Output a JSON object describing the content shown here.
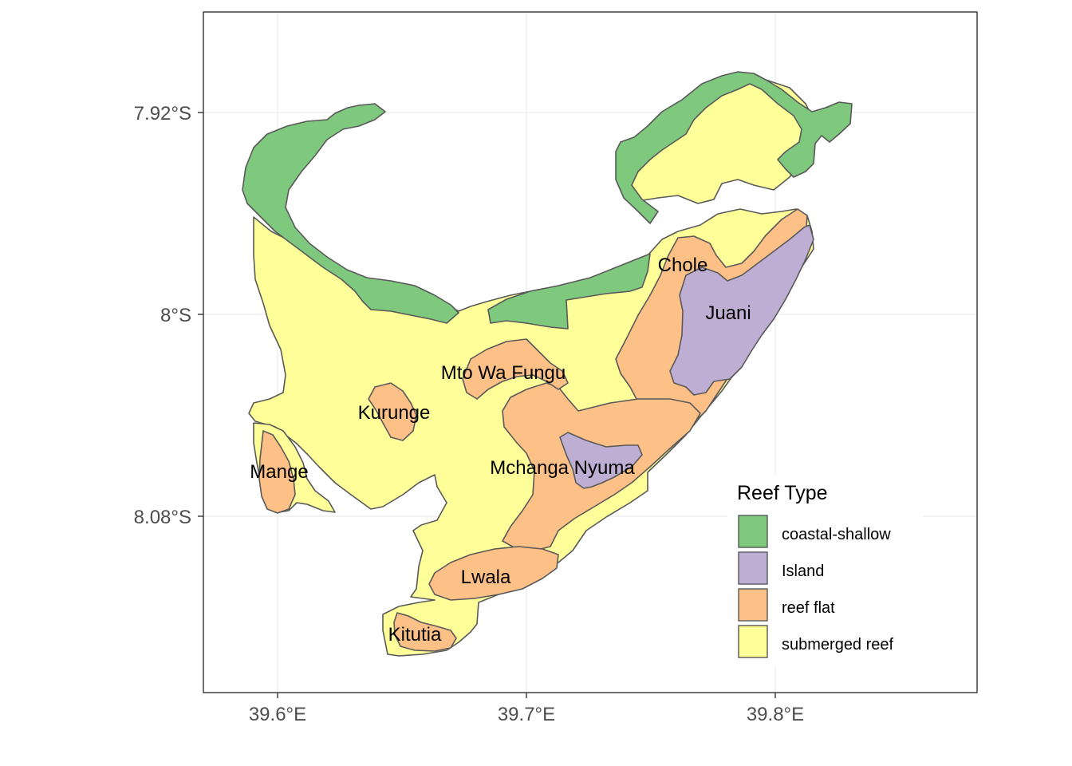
{
  "map": {
    "x_ticks": [
      "39.6°E",
      "39.7°E",
      "39.8°E"
    ],
    "y_ticks": [
      "7.92°S",
      "8°S",
      "8.08°S"
    ],
    "x_tick_values": [
      39.6,
      39.7,
      39.8
    ],
    "y_tick_values": [
      -7.92,
      -8.0,
      -8.08
    ],
    "xlim": [
      39.57,
      39.882
    ],
    "ylim": [
      -8.142,
      -7.88
    ],
    "grid": true,
    "legend_placement": "bottom-right",
    "site_labels": [
      "Chole",
      "Juani",
      "Mto Wa Fungu",
      "Kurunge",
      "Mange",
      "Mchanga Nyuma",
      "Lwala",
      "Kitutia"
    ]
  },
  "legend": {
    "title": "Reef Type",
    "items": [
      {
        "label": "coastal-shallow",
        "color": "#7fc97f"
      },
      {
        "label": "Island",
        "color": "#beaed4"
      },
      {
        "label": "reef flat",
        "color": "#fdc086"
      },
      {
        "label": "submerged reef",
        "color": "#ffff99"
      }
    ]
  }
}
